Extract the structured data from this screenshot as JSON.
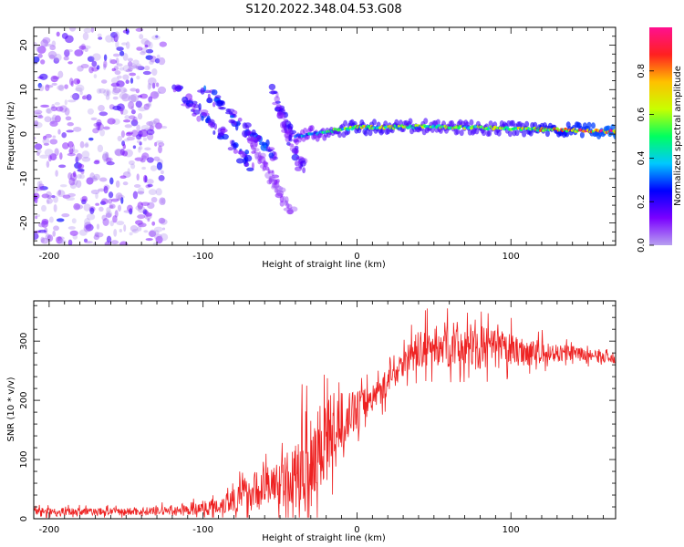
{
  "figure_title": "S120.2022.348.04.53.G08",
  "chart_data": [
    {
      "type": "heatmap",
      "title": "",
      "xlabel": "Height of straight line (km)",
      "ylabel": "Frequency (Hz)",
      "xlim": [
        -210,
        168
      ],
      "ylim": [
        -25,
        24
      ],
      "xticks": [
        -200,
        -100,
        0,
        100
      ],
      "yticks": [
        -20,
        -10,
        0,
        10,
        20
      ],
      "colorbar": {
        "label": "Normalized spectral amplitude",
        "range": [
          0,
          1
        ],
        "ticks": [
          0.0,
          0.2,
          0.4,
          0.6,
          0.8
        ],
        "colormap": [
          "#b8a0f0",
          "#7a00ff",
          "#0000ff",
          "#00c8ff",
          "#00ff60",
          "#c8ff00",
          "#ffc000",
          "#ff2020",
          "#ff1090"
        ]
      },
      "features": [
        {
          "name": "noise",
          "x_range": [
            -210,
            -125
          ],
          "f_range": [
            -25,
            24
          ],
          "amplitude": 0.12
        },
        {
          "name": "streak",
          "x": [
            -120,
            -68
          ],
          "f": [
            11,
            -7
          ],
          "amplitude": 0.22
        },
        {
          "name": "streak",
          "x": [
            -100,
            -50
          ],
          "f": [
            10,
            -6
          ],
          "amplitude": 0.25
        },
        {
          "name": "streak",
          "x": [
            -70,
            -42
          ],
          "f": [
            -1,
            -18
          ],
          "amplitude": 0.1
        },
        {
          "name": "streak",
          "x": [
            -55,
            -35
          ],
          "f": [
            10,
            -8
          ],
          "amplitude": 0.18
        },
        {
          "name": "line",
          "x": [
            -40,
            0,
            50,
            100,
            168
          ],
          "f": [
            -0.5,
            1.5,
            1.7,
            1.2,
            0.6
          ],
          "amplitude": [
            0.3,
            0.6,
            0.5,
            0.55,
            0.9
          ]
        }
      ]
    },
    {
      "type": "line",
      "title": "",
      "xlabel": "Height of straight line (km)",
      "ylabel": "SNR (10 * v/v)",
      "xlim": [
        -210,
        168
      ],
      "ylim": [
        0,
        368
      ],
      "xticks": [
        -200,
        -100,
        0,
        100
      ],
      "yticks": [
        0,
        100,
        200,
        300
      ],
      "series": [
        {
          "color": "#ee2222",
          "x": [
            -210,
            -150,
            -110,
            -90,
            -70,
            -50,
            -40,
            -30,
            -20,
            -10,
            0,
            10,
            20,
            30,
            40,
            60,
            80,
            100,
            120,
            140,
            168
          ],
          "y": [
            12,
            12,
            14,
            22,
            45,
            60,
            70,
            100,
            140,
            165,
            185,
            205,
            230,
            265,
            285,
            295,
            290,
            285,
            280,
            280,
            270
          ],
          "noise": [
            8,
            8,
            10,
            20,
            40,
            50,
            70,
            120,
            90,
            60,
            40,
            30,
            30,
            30,
            40,
            50,
            45,
            35,
            25,
            15,
            10
          ]
        }
      ]
    }
  ]
}
